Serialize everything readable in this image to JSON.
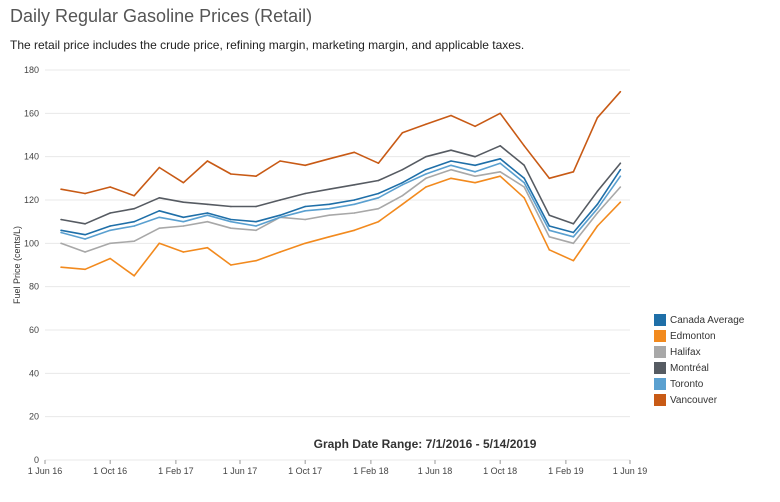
{
  "header": {
    "title": "Daily Regular Gasoline Prices (Retail)",
    "subtitle": "The retail price includes the crude price, refining margin, marketing margin, and applicable taxes."
  },
  "chart_data": {
    "type": "line",
    "ylabel": "Fuel Price (cents/L)",
    "annotation": "Graph Date Range:  7/1/2016 - 5/14/2019",
    "ylim": [
      0,
      180
    ],
    "yticks": [
      0,
      20,
      40,
      60,
      80,
      100,
      120,
      140,
      160,
      180
    ],
    "xlim": [
      "2016-06-01",
      "2019-06-01"
    ],
    "xticks": [
      {
        "date": "2016-06-01",
        "label": "1 Jun 16"
      },
      {
        "date": "2016-10-01",
        "label": "1 Oct 16"
      },
      {
        "date": "2017-02-01",
        "label": "1 Feb 17"
      },
      {
        "date": "2017-06-01",
        "label": "1 Jun 17"
      },
      {
        "date": "2017-10-01",
        "label": "1 Oct 17"
      },
      {
        "date": "2018-02-01",
        "label": "1 Feb 18"
      },
      {
        "date": "2018-06-01",
        "label": "1 Jun 18"
      },
      {
        "date": "2018-10-01",
        "label": "1 Oct 18"
      },
      {
        "date": "2019-02-01",
        "label": "1 Feb 19"
      },
      {
        "date": "2019-06-01",
        "label": "1 Jun 19"
      }
    ],
    "grid": true,
    "legend_position": "right",
    "x": [
      "2016-07-01",
      "2016-08-15",
      "2016-10-01",
      "2016-11-15",
      "2017-01-01",
      "2017-02-15",
      "2017-04-01",
      "2017-05-15",
      "2017-07-01",
      "2017-08-15",
      "2017-10-01",
      "2017-11-15",
      "2018-01-01",
      "2018-02-15",
      "2018-04-01",
      "2018-05-15",
      "2018-07-01",
      "2018-08-15",
      "2018-10-01",
      "2018-11-15",
      "2019-01-01",
      "2019-02-15",
      "2019-04-01",
      "2019-05-14"
    ],
    "series": [
      {
        "name": "Canada Average",
        "color": "#1f6fa8",
        "values": [
          106,
          104,
          108,
          110,
          115,
          112,
          114,
          111,
          110,
          113,
          117,
          118,
          120,
          123,
          128,
          134,
          138,
          136,
          139,
          130,
          108,
          105,
          118,
          134
        ]
      },
      {
        "name": "Edmonton",
        "color": "#f28a1e",
        "values": [
          89,
          88,
          93,
          85,
          100,
          96,
          98,
          90,
          92,
          96,
          100,
          103,
          106,
          110,
          118,
          126,
          130,
          128,
          131,
          121,
          97,
          92,
          108,
          119
        ]
      },
      {
        "name": "Halifax",
        "color": "#a8a8a8",
        "values": [
          100,
          96,
          100,
          101,
          107,
          108,
          110,
          107,
          106,
          112,
          111,
          113,
          114,
          116,
          122,
          130,
          134,
          131,
          133,
          126,
          103,
          100,
          114,
          126
        ]
      },
      {
        "name": "Montréal",
        "color": "#565b62",
        "values": [
          111,
          109,
          114,
          116,
          121,
          119,
          118,
          117,
          117,
          120,
          123,
          125,
          127,
          129,
          134,
          140,
          143,
          140,
          145,
          136,
          113,
          109,
          124,
          137
        ]
      },
      {
        "name": "Toronto",
        "color": "#5aa0d0",
        "values": [
          105,
          102,
          106,
          108,
          112,
          110,
          113,
          110,
          108,
          112,
          115,
          116,
          118,
          121,
          127,
          132,
          136,
          133,
          137,
          128,
          106,
          103,
          116,
          131
        ]
      },
      {
        "name": "Vancouver",
        "color": "#c85a15",
        "values": [
          125,
          123,
          126,
          122,
          135,
          128,
          138,
          132,
          131,
          138,
          136,
          139,
          142,
          137,
          151,
          155,
          159,
          154,
          160,
          145,
          130,
          133,
          158,
          170
        ]
      }
    ]
  }
}
